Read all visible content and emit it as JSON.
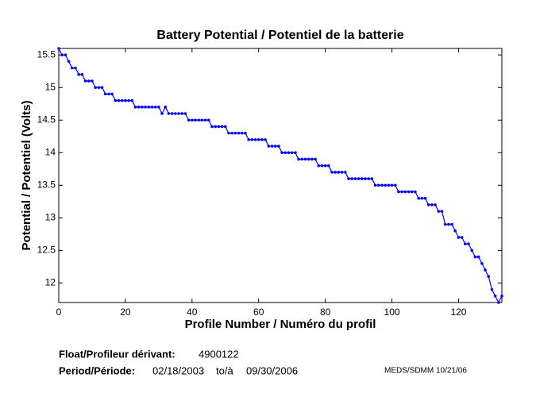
{
  "chart_data": {
    "type": "line",
    "title": "Battery Potential / Potentiel de la batterie",
    "xlabel": "Profile Number / Numéro du profil",
    "ylabel": "Potential / Potentiel (Volts)",
    "xlim": [
      0,
      133
    ],
    "ylim": [
      11.7,
      15.6
    ],
    "xticks": [
      0,
      20,
      40,
      60,
      80,
      100,
      120
    ],
    "yticks": [
      12,
      12.5,
      13,
      13.5,
      14,
      14.5,
      15,
      15.5
    ],
    "grid": false,
    "color": "#0000ff",
    "x": [
      0,
      1,
      2,
      3,
      4,
      5,
      6,
      7,
      8,
      9,
      10,
      11,
      12,
      13,
      14,
      15,
      16,
      17,
      18,
      19,
      20,
      21,
      22,
      23,
      24,
      25,
      26,
      27,
      28,
      29,
      30,
      31,
      32,
      33,
      34,
      35,
      36,
      37,
      38,
      39,
      40,
      41,
      42,
      43,
      44,
      45,
      46,
      47,
      48,
      49,
      50,
      51,
      52,
      53,
      54,
      55,
      56,
      57,
      58,
      59,
      60,
      61,
      62,
      63,
      64,
      65,
      66,
      67,
      68,
      69,
      70,
      71,
      72,
      73,
      74,
      75,
      76,
      77,
      78,
      79,
      80,
      81,
      82,
      83,
      84,
      85,
      86,
      87,
      88,
      89,
      90,
      91,
      92,
      93,
      94,
      95,
      96,
      97,
      98,
      99,
      100,
      101,
      102,
      103,
      104,
      105,
      106,
      107,
      108,
      109,
      110,
      111,
      112,
      113,
      114,
      115,
      116,
      117,
      118,
      119,
      120,
      121,
      122,
      123,
      124,
      125,
      126,
      127,
      128,
      129,
      130,
      131,
      132,
      133
    ],
    "values": [
      15.6,
      15.5,
      15.5,
      15.4,
      15.3,
      15.3,
      15.2,
      15.2,
      15.1,
      15.1,
      15.1,
      15.0,
      15.0,
      15.0,
      14.9,
      14.9,
      14.9,
      14.8,
      14.8,
      14.8,
      14.8,
      14.8,
      14.8,
      14.7,
      14.7,
      14.7,
      14.7,
      14.7,
      14.7,
      14.7,
      14.7,
      14.6,
      14.7,
      14.6,
      14.6,
      14.6,
      14.6,
      14.6,
      14.6,
      14.5,
      14.5,
      14.5,
      14.5,
      14.5,
      14.5,
      14.5,
      14.4,
      14.4,
      14.4,
      14.4,
      14.4,
      14.3,
      14.3,
      14.3,
      14.3,
      14.3,
      14.3,
      14.2,
      14.2,
      14.2,
      14.2,
      14.2,
      14.2,
      14.1,
      14.1,
      14.1,
      14.1,
      14.0,
      14.0,
      14.0,
      14.0,
      14.0,
      13.9,
      13.9,
      13.9,
      13.9,
      13.9,
      13.9,
      13.8,
      13.8,
      13.8,
      13.8,
      13.7,
      13.7,
      13.7,
      13.7,
      13.7,
      13.6,
      13.6,
      13.6,
      13.6,
      13.6,
      13.6,
      13.6,
      13.6,
      13.5,
      13.5,
      13.5,
      13.5,
      13.5,
      13.5,
      13.5,
      13.4,
      13.4,
      13.4,
      13.4,
      13.4,
      13.4,
      13.3,
      13.3,
      13.3,
      13.2,
      13.2,
      13.2,
      13.1,
      13.1,
      12.9,
      12.9,
      12.9,
      12.8,
      12.7,
      12.7,
      12.6,
      12.6,
      12.5,
      12.4,
      12.4,
      12.3,
      12.2,
      12.1,
      11.9,
      11.8,
      11.7,
      11.8
    ]
  },
  "footer": {
    "float_label": "Float/Profileur dérivant:",
    "float_id": "4900122",
    "period_label": "Period/Période:",
    "start": "02/18/2003",
    "to": "to/à",
    "end": "09/30/2006",
    "credit": "MEDS/SDMM  10/21/06"
  }
}
